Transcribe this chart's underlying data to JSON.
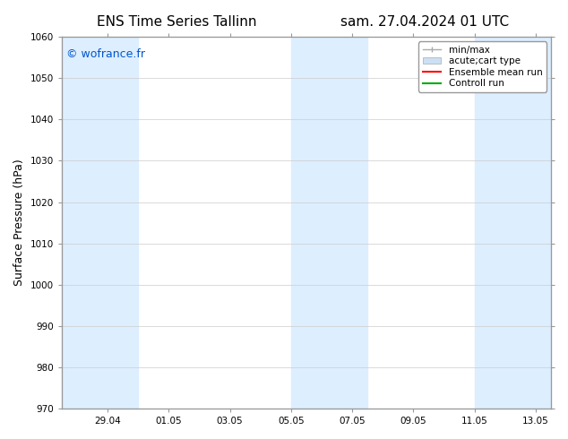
{
  "title_left": "ENS Time Series Tallinn",
  "title_right": "sam. 27.04.2024 01 UTC",
  "ylabel": "Surface Pressure (hPa)",
  "ylim": [
    970,
    1060
  ],
  "yticks": [
    970,
    980,
    990,
    1000,
    1010,
    1020,
    1030,
    1040,
    1050,
    1060
  ],
  "xlim_start": 0,
  "xlim_end": 16,
  "xtick_labels": [
    "29.04",
    "01.05",
    "03.05",
    "05.05",
    "07.05",
    "09.05",
    "11.05",
    "13.05"
  ],
  "xtick_positions": [
    1.5,
    3.5,
    5.5,
    7.5,
    9.5,
    11.5,
    13.5,
    15.5
  ],
  "shaded_bands": [
    {
      "x_start": 0.0,
      "x_end": 2.5,
      "color": "#ddeeff"
    },
    {
      "x_start": 7.5,
      "x_end": 10.0,
      "color": "#ddeeff"
    },
    {
      "x_start": 13.5,
      "x_end": 16.0,
      "color": "#ddeeff"
    }
  ],
  "watermark_text": "© wofrance.fr",
  "watermark_color": "#0055cc",
  "bg_color": "#ffffff",
  "plot_bg_color": "#ffffff",
  "grid_color": "#cccccc",
  "legend_items": [
    {
      "label": "min/max",
      "type": "errorbar",
      "color": "#aaaaaa"
    },
    {
      "label": "acute;cart type",
      "type": "fill_between",
      "color": "#cce0f5"
    },
    {
      "label": "Ensemble mean run",
      "type": "line",
      "color": "#ff0000"
    },
    {
      "label": "Controll run",
      "type": "line",
      "color": "#00aa00"
    }
  ],
  "title_fontsize": 11,
  "tick_fontsize": 7.5,
  "ylabel_fontsize": 9
}
